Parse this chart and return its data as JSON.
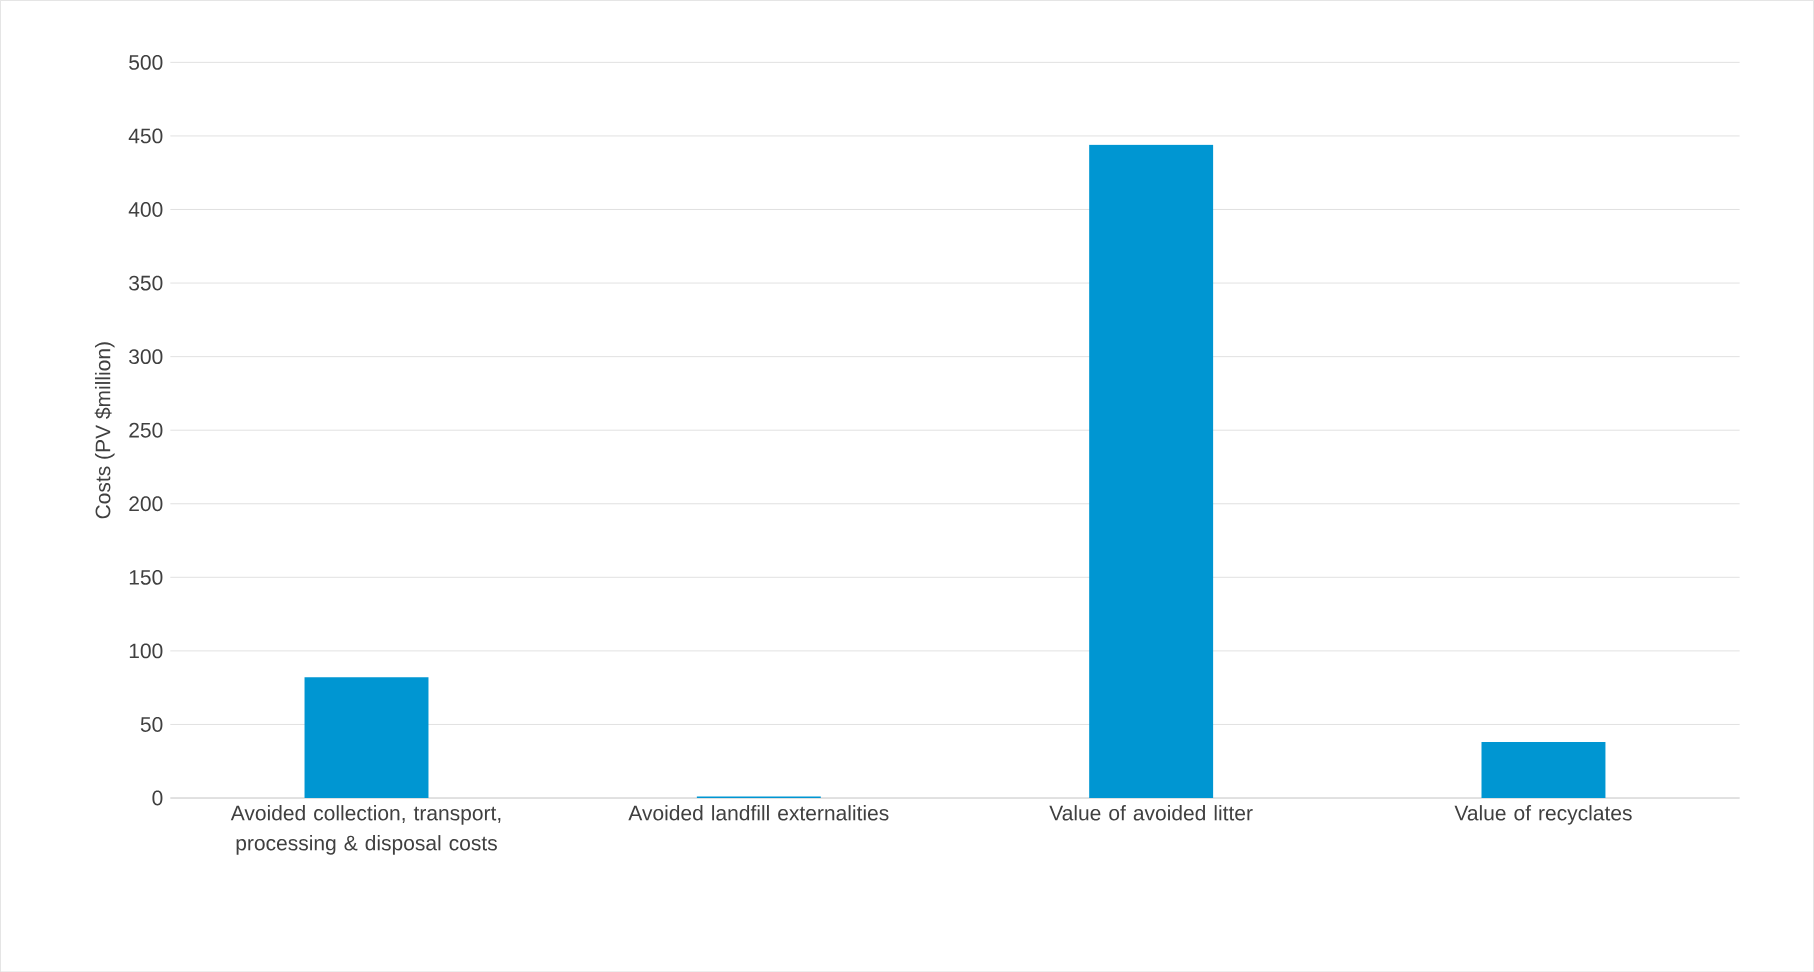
{
  "chart_data": {
    "type": "bar",
    "ylabel": "Costs (PV $million)",
    "categories": [
      "Avoided collection, transport, processing & disposal costs",
      "Avoided landfill externalities",
      "Value of avoided litter",
      "Value of recyclates"
    ],
    "values": [
      82,
      1,
      444,
      38
    ],
    "color": "#0096d2",
    "ylim": [
      0,
      500
    ],
    "yticks": [
      0,
      50,
      100,
      150,
      200,
      250,
      300,
      350,
      400,
      450,
      500
    ],
    "grid": "y"
  }
}
